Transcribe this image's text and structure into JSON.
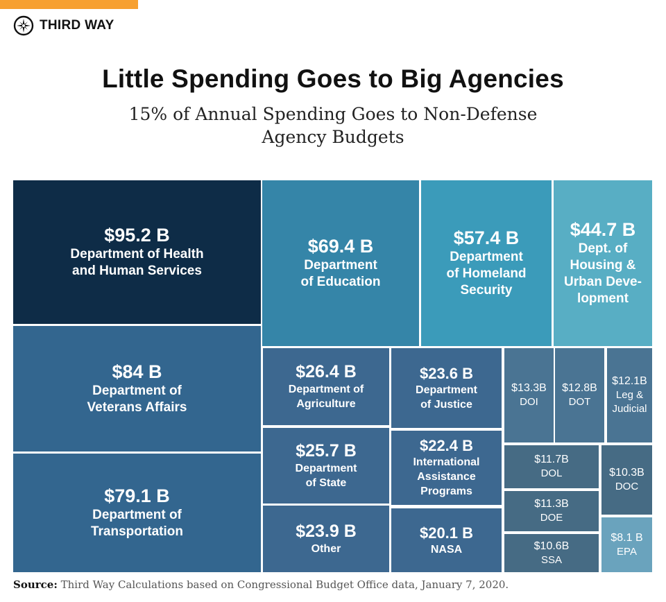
{
  "brand": {
    "name": "THIRD WAY",
    "accent": "#f7a030"
  },
  "header": {
    "title": "Little Spending Goes to Big Agencies",
    "subtitle": "15% of Annual Spending Goes to Non-Defense\nAgency Budgets"
  },
  "chart_data": {
    "type": "treemap",
    "title": "Little Spending Goes to Big Agencies",
    "subtitle": "15% of Annual Spending Goes to Non-Defense Agency Budgets",
    "unit": "billions USD",
    "items": [
      {
        "label": "Department of Health\nand Human Services",
        "value": 95.2,
        "value_label": "$95.2 B",
        "color": "#0e2c47"
      },
      {
        "label": "Department of\nVeterans Affairs",
        "value": 84,
        "value_label": "$84 B",
        "color": "#33668f"
      },
      {
        "label": "Department of\nTransportation",
        "value": 79.1,
        "value_label": "$79.1 B",
        "color": "#33668f"
      },
      {
        "label": "Department\nof Education",
        "value": 69.4,
        "value_label": "$69.4 B",
        "color": "#3585a8"
      },
      {
        "label": "Department\nof Homeland\nSecurity",
        "value": 57.4,
        "value_label": "$57.4 B",
        "color": "#3b9bba"
      },
      {
        "label": "Dept. of\nHousing &\nUrban Deve-\nlopment",
        "value": 44.7,
        "value_label": "$44.7 B",
        "color": "#58aec4"
      },
      {
        "label": "Department of\nAgriculture",
        "value": 26.4,
        "value_label": "$26.4 B",
        "color": "#3d6890"
      },
      {
        "label": "Department\nof State",
        "value": 25.7,
        "value_label": "$25.7 B",
        "color": "#3d6890"
      },
      {
        "label": "Other",
        "value": 23.9,
        "value_label": "$23.9 B",
        "color": "#3d6890"
      },
      {
        "label": "Department\nof Justice",
        "value": 23.6,
        "value_label": "$23.6 B",
        "color": "#3d6890"
      },
      {
        "label": "International\nAssistance\nPrograms",
        "value": 22.4,
        "value_label": "$22.4 B",
        "color": "#3d6890"
      },
      {
        "label": "NASA",
        "value": 20.1,
        "value_label": "$20.1 B",
        "color": "#3d6890"
      },
      {
        "label": "DOI",
        "value": 13.3,
        "value_label": "$13.3B",
        "color": "#4a7493"
      },
      {
        "label": "DOT",
        "value": 12.8,
        "value_label": "$12.8B",
        "color": "#4a7493"
      },
      {
        "label": "Leg &\nJudicial",
        "value": 12.1,
        "value_label": "$12.1B",
        "color": "#4a7493"
      },
      {
        "label": "DOL",
        "value": 11.7,
        "value_label": "$11.7B",
        "color": "#466b84"
      },
      {
        "label": "DOE",
        "value": 11.3,
        "value_label": "$11.3B",
        "color": "#466b84"
      },
      {
        "label": "SSA",
        "value": 10.6,
        "value_label": "$10.6B",
        "color": "#466b84"
      },
      {
        "label": "DOC",
        "value": 10.3,
        "value_label": "$10.3B",
        "color": "#466b84"
      },
      {
        "label": "EPA",
        "value": 8.1,
        "value_label": "$8.1 B",
        "color": "#6aa3bd"
      }
    ]
  },
  "footer": {
    "source_label": "Source:",
    "source_text": " Third Way Calculations based on Congressional Budget Office data, January 7, 2020."
  }
}
